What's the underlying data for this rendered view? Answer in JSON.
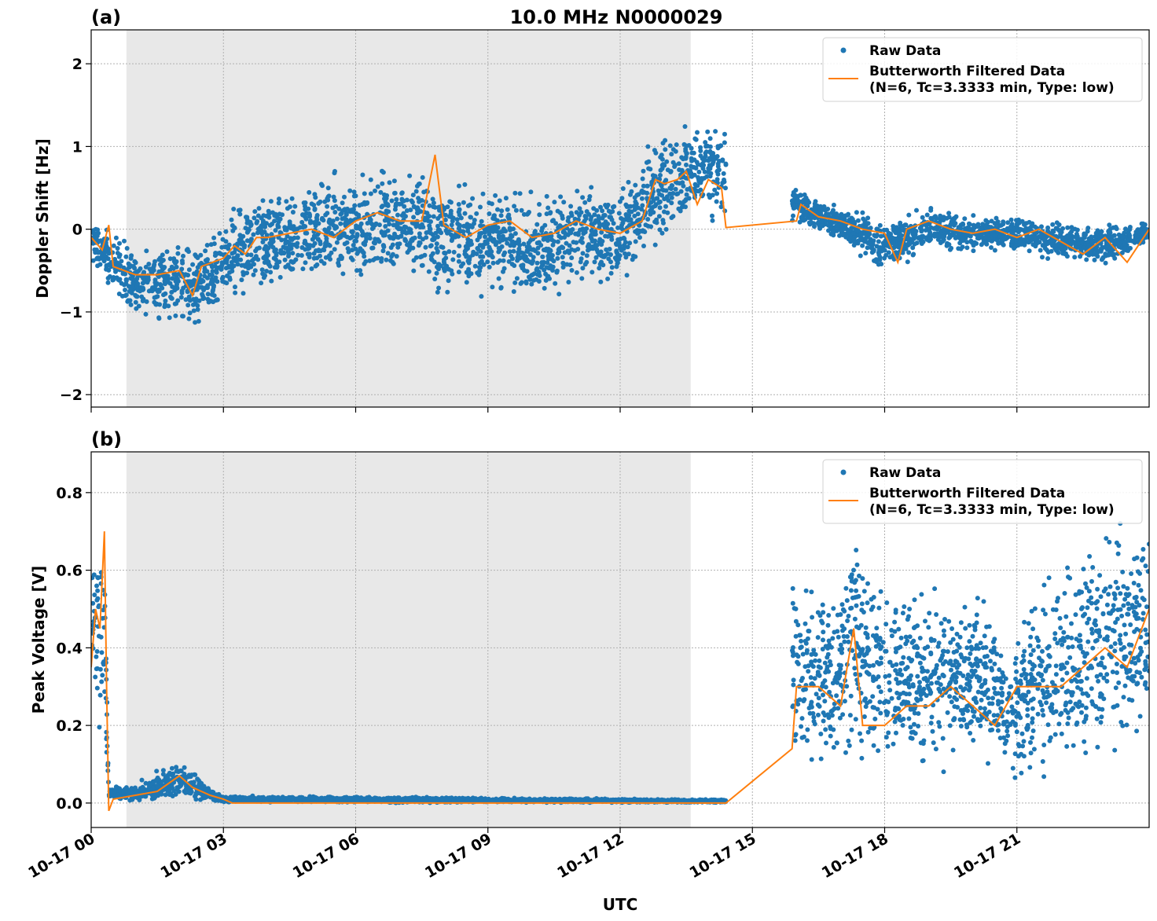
{
  "chart_data": {
    "title": "10.0 MHz N0000029",
    "xlabel": "UTC",
    "x_tick_labels": [
      "10-17 00",
      "10-17 03",
      "10-17 06",
      "10-17 09",
      "10-17 12",
      "10-17 15",
      "10-17 18",
      "10-17 21"
    ],
    "x_ticks_hours": [
      0,
      3,
      6,
      9,
      12,
      15,
      18,
      21
    ],
    "xlim_hours": [
      0,
      24
    ],
    "shaded_interval_hours": [
      0.8,
      13.6
    ],
    "shade_color": "#e8e8e8",
    "grid": true,
    "legend_placement": "top-right",
    "legend": [
      "Raw Data",
      "Butterworth Filtered Data",
      "(N=6, Tc=3.3333 min, Type: low)"
    ],
    "colors": {
      "raw": "#1f77b4",
      "filtered": "#ff7f0e"
    },
    "panels": [
      {
        "label": "(a)",
        "type": "scatter+line",
        "ylabel": "Doppler Shift [Hz]",
        "ylim": [
          -2.15,
          2.41
        ],
        "y_ticks": [
          -2,
          -1,
          0,
          1,
          2
        ],
        "y_tick_labels": [
          "−2",
          "−1",
          "0",
          "1",
          "2"
        ],
        "raw_envelope": [
          [
            [
              0,
              -0.4,
              0.1
            ],
            [
              0.5,
              -0.9,
              0.1
            ],
            [
              1,
              -1.1,
              -0.2
            ],
            [
              2,
              -1.2,
              0.0
            ],
            [
              2.5,
              -1.3,
              -0.1
            ],
            [
              3,
              -0.9,
              0.1
            ],
            [
              3.5,
              -1.0,
              0.6
            ],
            [
              4,
              -0.9,
              0.5
            ],
            [
              5,
              -0.8,
              0.7
            ],
            [
              6,
              -0.8,
              0.9
            ],
            [
              7,
              -0.7,
              0.9
            ],
            [
              8,
              -1.0,
              0.8
            ],
            [
              9,
              -0.9,
              0.6
            ],
            [
              10,
              -1.0,
              0.6
            ],
            [
              11,
              -0.8,
              0.6
            ],
            [
              12,
              -0.8,
              0.6
            ],
            [
              12.7,
              -0.4,
              1.2
            ],
            [
              13.5,
              0.0,
              1.4
            ],
            [
              14.4,
              0.0,
              1.5
            ]
          ],
          [
            [
              15.9,
              0.0,
              0.6
            ],
            [
              17,
              -0.2,
              0.3
            ],
            [
              18,
              -0.6,
              0.2
            ],
            [
              19,
              -0.3,
              0.3
            ],
            [
              20,
              -0.3,
              0.2
            ],
            [
              21,
              -0.3,
              0.2
            ],
            [
              22,
              -0.4,
              0.1
            ],
            [
              23,
              -0.5,
              0.1
            ],
            [
              24,
              -0.2,
              0.1
            ]
          ]
        ],
        "filtered": [
          [
            0,
            -0.1
          ],
          [
            0.25,
            -0.25
          ],
          [
            0.4,
            0.05
          ],
          [
            0.5,
            -0.45
          ],
          [
            1,
            -0.55
          ],
          [
            1.5,
            -0.55
          ],
          [
            2,
            -0.5
          ],
          [
            2.3,
            -0.8
          ],
          [
            2.5,
            -0.45
          ],
          [
            3,
            -0.35
          ],
          [
            3.25,
            -0.2
          ],
          [
            3.5,
            -0.3
          ],
          [
            3.75,
            -0.1
          ],
          [
            4,
            -0.1
          ],
          [
            4.5,
            -0.05
          ],
          [
            5,
            0.0
          ],
          [
            5.5,
            -0.1
          ],
          [
            6,
            0.1
          ],
          [
            6.5,
            0.2
          ],
          [
            7,
            0.1
          ],
          [
            7.5,
            0.1
          ],
          [
            7.8,
            0.9
          ],
          [
            8,
            0.05
          ],
          [
            8.5,
            -0.1
          ],
          [
            9,
            0.05
          ],
          [
            9.5,
            0.1
          ],
          [
            10,
            -0.1
          ],
          [
            10.5,
            -0.05
          ],
          [
            11,
            0.1
          ],
          [
            11.5,
            0.0
          ],
          [
            12,
            -0.05
          ],
          [
            12.5,
            0.1
          ],
          [
            12.8,
            0.6
          ],
          [
            13,
            0.55
          ],
          [
            13.3,
            0.6
          ],
          [
            13.5,
            0.7
          ],
          [
            13.75,
            0.3
          ],
          [
            14,
            0.6
          ],
          [
            14.3,
            0.5
          ],
          [
            14.4,
            0.02
          ],
          [
            16.0,
            0.1
          ],
          [
            16.1,
            0.3
          ],
          [
            16.5,
            0.15
          ],
          [
            17,
            0.1
          ],
          [
            17.5,
            0.0
          ],
          [
            18,
            -0.05
          ],
          [
            18.3,
            -0.4
          ],
          [
            18.5,
            0.0
          ],
          [
            19,
            0.1
          ],
          [
            19.5,
            0.0
          ],
          [
            20,
            -0.05
          ],
          [
            20.5,
            0.0
          ],
          [
            21,
            -0.1
          ],
          [
            21.5,
            0.0
          ],
          [
            22,
            -0.15
          ],
          [
            22.5,
            -0.3
          ],
          [
            23,
            -0.1
          ],
          [
            23.5,
            -0.4
          ],
          [
            24,
            0.0
          ]
        ]
      },
      {
        "label": "(b)",
        "type": "scatter+line",
        "ylabel": "Peak Voltage [V]",
        "ylim": [
          -0.063,
          0.905
        ],
        "y_ticks": [
          0,
          0.2,
          0.4,
          0.6,
          0.8
        ],
        "y_tick_labels": [
          "0.0",
          "0.2",
          "0.4",
          "0.6",
          "0.8"
        ],
        "raw_envelope": [
          [
            [
              0,
              0.2,
              0.7
            ],
            [
              0.3,
              0.1,
              0.86
            ],
            [
              0.4,
              0.0,
              0.05
            ],
            [
              1,
              0.0,
              0.05
            ],
            [
              2,
              0.0,
              0.12
            ],
            [
              3,
              0.0,
              0.02
            ],
            [
              14.4,
              0.0,
              0.01
            ]
          ],
          [
            [
              15.9,
              0.05,
              0.65
            ],
            [
              17,
              0.05,
              0.6
            ],
            [
              17.3,
              0.05,
              0.8
            ],
            [
              18,
              0.05,
              0.6
            ],
            [
              20,
              0.05,
              0.6
            ],
            [
              21,
              0.0,
              0.5
            ],
            [
              22,
              0.05,
              0.7
            ],
            [
              23,
              0.05,
              0.75
            ],
            [
              24,
              0.1,
              0.8
            ]
          ]
        ],
        "filtered": [
          [
            0,
            0.35
          ],
          [
            0.1,
            0.5
          ],
          [
            0.2,
            0.45
          ],
          [
            0.3,
            0.7
          ],
          [
            0.35,
            0.3
          ],
          [
            0.4,
            -0.02
          ],
          [
            0.5,
            0.01
          ],
          [
            1,
            0.02
          ],
          [
            1.5,
            0.03
          ],
          [
            2,
            0.07
          ],
          [
            2.3,
            0.04
          ],
          [
            2.7,
            0.02
          ],
          [
            3,
            0.01
          ],
          [
            3.2,
            0.0
          ],
          [
            14.4,
            0.0
          ],
          [
            15.9,
            0.14
          ],
          [
            16,
            0.3
          ],
          [
            16.5,
            0.3
          ],
          [
            17,
            0.25
          ],
          [
            17.3,
            0.45
          ],
          [
            17.5,
            0.2
          ],
          [
            18,
            0.2
          ],
          [
            18.5,
            0.25
          ],
          [
            19,
            0.25
          ],
          [
            19.5,
            0.3
          ],
          [
            20,
            0.25
          ],
          [
            20.5,
            0.2
          ],
          [
            21,
            0.3
          ],
          [
            21.5,
            0.3
          ],
          [
            22,
            0.3
          ],
          [
            22.5,
            0.35
          ],
          [
            23,
            0.4
          ],
          [
            23.5,
            0.35
          ],
          [
            24,
            0.5
          ]
        ]
      }
    ]
  }
}
